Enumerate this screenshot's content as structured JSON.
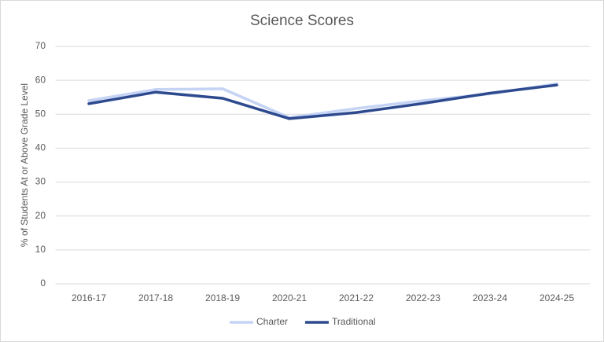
{
  "chart_data": {
    "type": "line",
    "title": "Science Scores",
    "y_label": "% of Students At or Above Grade Level",
    "categories": [
      "2016-17",
      "2017-18",
      "2018-19",
      "2020-21",
      "2021-22",
      "2022-23",
      "2023-24",
      "2024-25"
    ],
    "series": [
      {
        "name": "Charter",
        "color": "#c5d4f5",
        "values": [
          54,
          57.3,
          57.5,
          49,
          51.7,
          54,
          56,
          59
        ]
      },
      {
        "name": "Traditional",
        "color": "#2e4a8f",
        "values": [
          53.1,
          56.5,
          54.7,
          48.7,
          50.5,
          53.2,
          56.2,
          58.6
        ]
      }
    ],
    "ylim": [
      0,
      70
    ],
    "yticks": [
      0,
      10,
      20,
      30,
      40,
      50,
      60,
      70
    ],
    "grid": true,
    "legend": "bottom"
  }
}
